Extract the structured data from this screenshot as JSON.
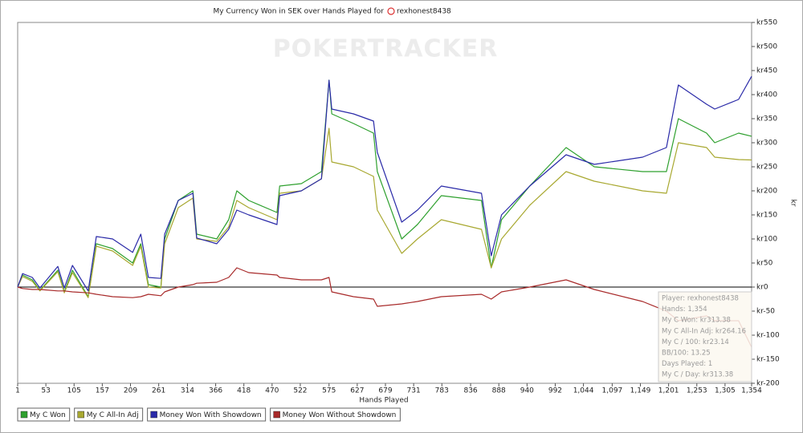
{
  "chart_data": {
    "type": "line",
    "title": "My Currency Won in SEK over Hands Played for",
    "title_player": "rexhonest8438",
    "watermark": "POKERTRACKER",
    "x_label": "Hands Played",
    "y_label": "kr",
    "grid": false,
    "legend": "bottom-left",
    "xlim": [
      1,
      1354
    ],
    "xticks": [
      1,
      53,
      105,
      157,
      209,
      261,
      314,
      366,
      418,
      470,
      522,
      575,
      627,
      679,
      731,
      783,
      836,
      888,
      940,
      992,
      {
        "value": 1044,
        "label": "1,044"
      },
      {
        "value": 1097,
        "label": "1,097"
      },
      {
        "value": 1149,
        "label": "1,149"
      },
      {
        "value": 1201,
        "label": "1,201"
      },
      {
        "value": 1253,
        "label": "1,253"
      },
      {
        "value": 1305,
        "label": "1,305"
      },
      {
        "value": 1354,
        "label": "1,354"
      }
    ],
    "ylim": [
      -200,
      550
    ],
    "yticks": [
      {
        "value": 550,
        "label": "kr550"
      },
      {
        "value": 500,
        "label": "kr500"
      },
      {
        "value": 450,
        "label": "kr450"
      },
      {
        "value": 400,
        "label": "kr400"
      },
      {
        "value": 350,
        "label": "kr350"
      },
      {
        "value": 300,
        "label": "kr300"
      },
      {
        "value": 250,
        "label": "kr250"
      },
      {
        "value": 200,
        "label": "kr200"
      },
      {
        "value": 150,
        "label": "kr150"
      },
      {
        "value": 100,
        "label": "kr100"
      },
      {
        "value": 50,
        "label": "kr50"
      },
      {
        "value": 0,
        "label": "kr0"
      },
      {
        "value": -50,
        "label": "kr-50"
      },
      {
        "value": -100,
        "label": "kr-100"
      },
      {
        "value": -150,
        "label": "kr-150"
      },
      {
        "value": -200,
        "label": "kr-200"
      }
    ],
    "x": [
      1,
      10,
      28,
      42,
      75,
      87,
      102,
      131,
      146,
      176,
      213,
      228,
      242,
      265,
      272,
      297,
      324,
      331,
      368,
      390,
      405,
      427,
      479,
      484,
      524,
      561,
      575,
      580,
      620,
      657,
      664,
      709,
      738,
      782,
      856,
      874,
      893,
      945,
      1012,
      1064,
      1153,
      1197,
      1219,
      1271,
      1286,
      1330,
      1354
    ],
    "series": [
      {
        "name": "My C Won",
        "color": "#2ea02e",
        "values": [
          0,
          25,
          15,
          -7,
          35,
          -10,
          35,
          -20,
          90,
          80,
          50,
          90,
          5,
          0,
          100,
          180,
          200,
          110,
          100,
          140,
          200,
          180,
          155,
          210,
          215,
          240,
          430,
          360,
          340,
          320,
          240,
          100,
          130,
          190,
          180,
          40,
          140,
          210,
          290,
          250,
          240,
          240,
          350,
          320,
          300,
          320,
          313.38
        ]
      },
      {
        "name": "My C All-In Adj",
        "color": "#a8a830",
        "values": [
          0,
          22,
          12,
          -8,
          32,
          -12,
          30,
          -22,
          85,
          75,
          45,
          85,
          0,
          -2,
          90,
          165,
          185,
          100,
          95,
          125,
          180,
          165,
          140,
          195,
          200,
          225,
          330,
          260,
          250,
          230,
          160,
          70,
          100,
          140,
          120,
          40,
          100,
          170,
          240,
          220,
          200,
          195,
          300,
          290,
          270,
          265,
          264.16
        ]
      },
      {
        "name": "Money Won With Showdown",
        "color": "#2a2aa8",
        "values": [
          0,
          28,
          20,
          -2,
          43,
          -2,
          45,
          -8,
          105,
          100,
          72,
          110,
          20,
          18,
          110,
          180,
          195,
          102,
          90,
          120,
          160,
          150,
          130,
          190,
          200,
          225,
          430,
          370,
          360,
          345,
          280,
          135,
          160,
          210,
          195,
          65,
          150,
          210,
          275,
          255,
          270,
          290,
          420,
          380,
          370,
          390,
          438
        ]
      },
      {
        "name": "Money Won Without Showdown",
        "color": "#a82a2a",
        "values": [
          0,
          -3,
          -5,
          -5,
          -8,
          -8,
          -10,
          -12,
          -15,
          -20,
          -22,
          -20,
          -15,
          -18,
          -10,
          0,
          5,
          8,
          10,
          20,
          40,
          30,
          25,
          20,
          15,
          15,
          20,
          -10,
          -20,
          -25,
          -40,
          -35,
          -30,
          -20,
          -15,
          -25,
          -10,
          0,
          15,
          -5,
          -30,
          -50,
          -70,
          -60,
          -70,
          -70,
          -125
        ]
      }
    ],
    "tooltip": [
      "Player: rexhonest8438",
      "Hands: 1,354",
      "My C Won: kr313.38",
      "My C All-In Adj: kr264.16",
      "My C / 100: kr23.14",
      "BB/100: 13.25",
      "Days Played: 1",
      "My C / Day: kr313.38"
    ]
  }
}
